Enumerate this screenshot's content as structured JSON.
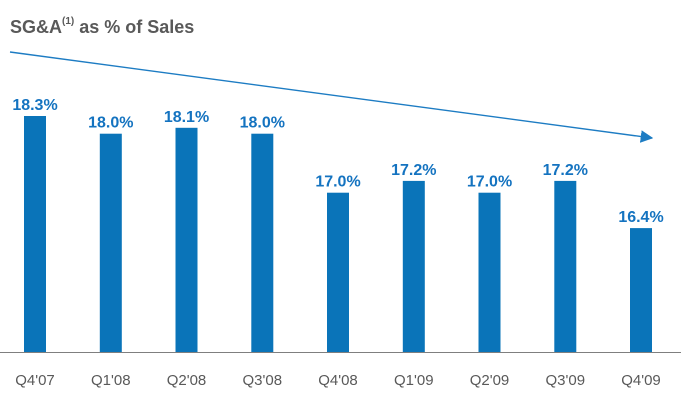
{
  "chart_data": {
    "type": "bar",
    "title": "SG&A",
    "title_superscript": "(1)",
    "title_suffix": " as % of Sales",
    "categories": [
      "Q4'07",
      "Q1'08",
      "Q2'08",
      "Q3'08",
      "Q4'08",
      "Q1'09",
      "Q2'09",
      "Q3'09",
      "Q4'09"
    ],
    "values": [
      18.3,
      18.0,
      18.1,
      18.0,
      17.0,
      17.2,
      17.0,
      17.2,
      16.4
    ],
    "value_labels": [
      "18.3%",
      "18.0%",
      "18.1%",
      "18.0%",
      "17.0%",
      "17.2%",
      "17.0%",
      "17.2%",
      "16.4%"
    ],
    "ylim": [
      14.3,
      18.3
    ],
    "grid": false,
    "legend": "none",
    "trend_arrow": "downward",
    "colors": {
      "bar": "#0A74B9",
      "label": "#1473C0",
      "title": "#595959",
      "tick": "#595959",
      "axis": "#7f7f7f",
      "arrow": "#1D7CC3"
    }
  }
}
